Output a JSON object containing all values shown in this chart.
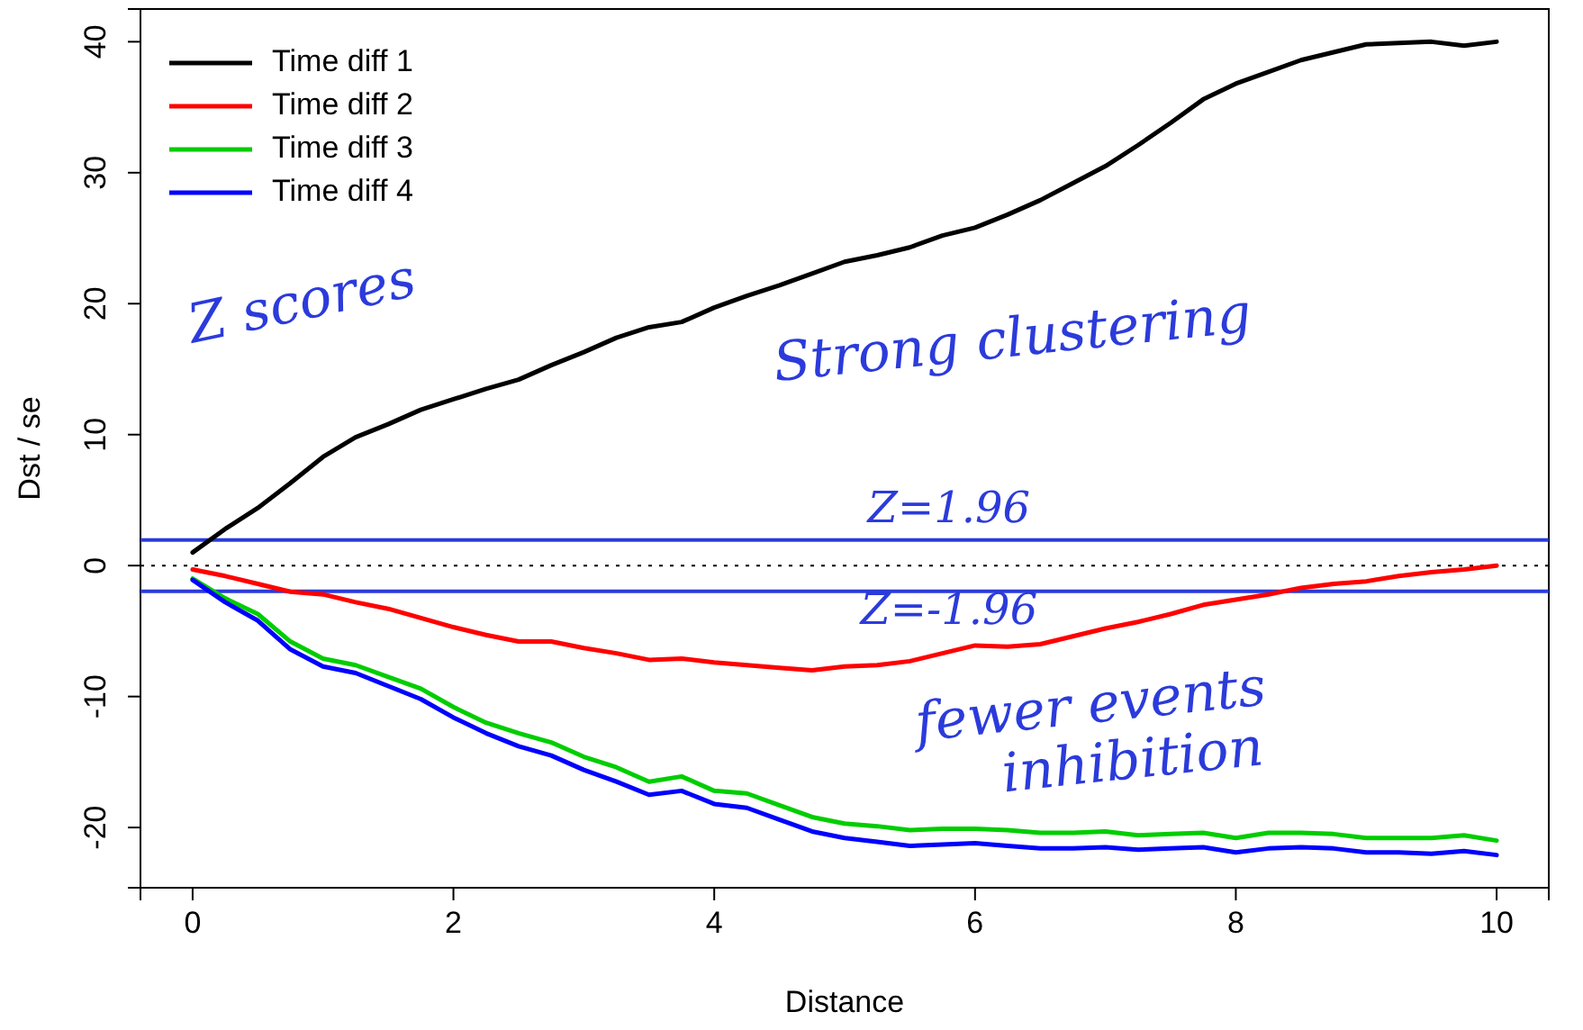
{
  "chart_data": {
    "type": "line",
    "xlabel": "Distance",
    "ylabel": "Dst / se",
    "x": [
      0,
      0.25,
      0.5,
      0.75,
      1,
      1.25,
      1.5,
      1.75,
      2,
      2.25,
      2.5,
      2.75,
      3,
      3.25,
      3.5,
      3.75,
      4,
      4.25,
      4.5,
      4.75,
      5,
      5.25,
      5.5,
      5.75,
      6,
      6.25,
      6.5,
      6.75,
      7,
      7.25,
      7.5,
      7.75,
      8,
      8.25,
      8.5,
      8.75,
      9,
      9.25,
      9.5,
      9.75,
      10
    ],
    "series": [
      {
        "name": "Time diff 1",
        "color": "#000000",
        "values": [
          1.0,
          2.8,
          4.4,
          6.3,
          8.3,
          9.8,
          10.8,
          11.9,
          12.7,
          13.5,
          14.2,
          15.3,
          16.3,
          17.4,
          18.2,
          18.6,
          19.7,
          20.6,
          21.4,
          22.3,
          23.2,
          23.7,
          24.3,
          25.2,
          25.8,
          26.8,
          27.9,
          29.2,
          30.5,
          32.1,
          33.8,
          35.6,
          36.8,
          37.7,
          38.6,
          39.2,
          39.8,
          39.9,
          40.0,
          39.7,
          40.0
        ]
      },
      {
        "name": "Time diff 2",
        "color": "#ff0000",
        "values": [
          -0.3,
          -0.8,
          -1.4,
          -2.0,
          -2.2,
          -2.8,
          -3.3,
          -4.0,
          -4.7,
          -5.3,
          -5.8,
          -5.8,
          -6.3,
          -6.7,
          -7.2,
          -7.1,
          -7.4,
          -7.6,
          -7.8,
          -8.0,
          -7.7,
          -7.6,
          -7.3,
          -6.7,
          -6.1,
          -6.2,
          -6.0,
          -5.4,
          -4.8,
          -4.3,
          -3.7,
          -3.0,
          -2.6,
          -2.2,
          -1.7,
          -1.4,
          -1.2,
          -0.8,
          -0.5,
          -0.3,
          0.0
        ]
      },
      {
        "name": "Time diff 3",
        "color": "#00cd00",
        "values": [
          -1.0,
          -2.5,
          -3.7,
          -5.8,
          -7.1,
          -7.6,
          -8.5,
          -9.4,
          -10.8,
          -12.0,
          -12.8,
          -13.5,
          -14.6,
          -15.4,
          -16.5,
          -16.1,
          -17.2,
          -17.4,
          -18.3,
          -19.2,
          -19.7,
          -19.9,
          -20.2,
          -20.1,
          -20.1,
          -20.2,
          -20.4,
          -20.4,
          -20.3,
          -20.6,
          -20.5,
          -20.4,
          -20.8,
          -20.4,
          -20.4,
          -20.5,
          -20.8,
          -20.8,
          -20.8,
          -20.6,
          -21.0
        ]
      },
      {
        "name": "Time diff 4",
        "color": "#0000ff",
        "values": [
          -1.1,
          -2.8,
          -4.2,
          -6.4,
          -7.7,
          -8.2,
          -9.2,
          -10.2,
          -11.6,
          -12.8,
          -13.8,
          -14.5,
          -15.6,
          -16.5,
          -17.5,
          -17.2,
          -18.2,
          -18.5,
          -19.4,
          -20.3,
          -20.8,
          -21.1,
          -21.4,
          -21.3,
          -21.2,
          -21.4,
          -21.6,
          -21.6,
          -21.5,
          -21.7,
          -21.6,
          -21.5,
          -21.9,
          -21.6,
          -21.5,
          -21.6,
          -21.9,
          -21.9,
          -22.0,
          -21.8,
          -22.1
        ]
      }
    ],
    "xlim": [
      -0.4,
      10.4
    ],
    "xticks": [
      0,
      2,
      4,
      6,
      8,
      10
    ],
    "ylim": [
      -24.6,
      42.5
    ],
    "yticks": [
      -20,
      -10,
      0,
      10,
      20,
      30,
      40
    ],
    "ref_lines": [
      {
        "axis": "y",
        "value": 0,
        "color": "#000000",
        "line_style": "dotted"
      },
      {
        "axis": "y",
        "value": 1.96,
        "label": "Z=1.96",
        "color": "#2b3bdb"
      },
      {
        "axis": "y",
        "value": -1.96,
        "label": "Z=-1.96",
        "color": "#2b3bdb"
      }
    ],
    "annotations": [
      "Z scores",
      "Strong clustering",
      "fewer events inhibition"
    ],
    "legend": "top left",
    "line_style": "solid",
    "marker": "none",
    "grid": false
  }
}
